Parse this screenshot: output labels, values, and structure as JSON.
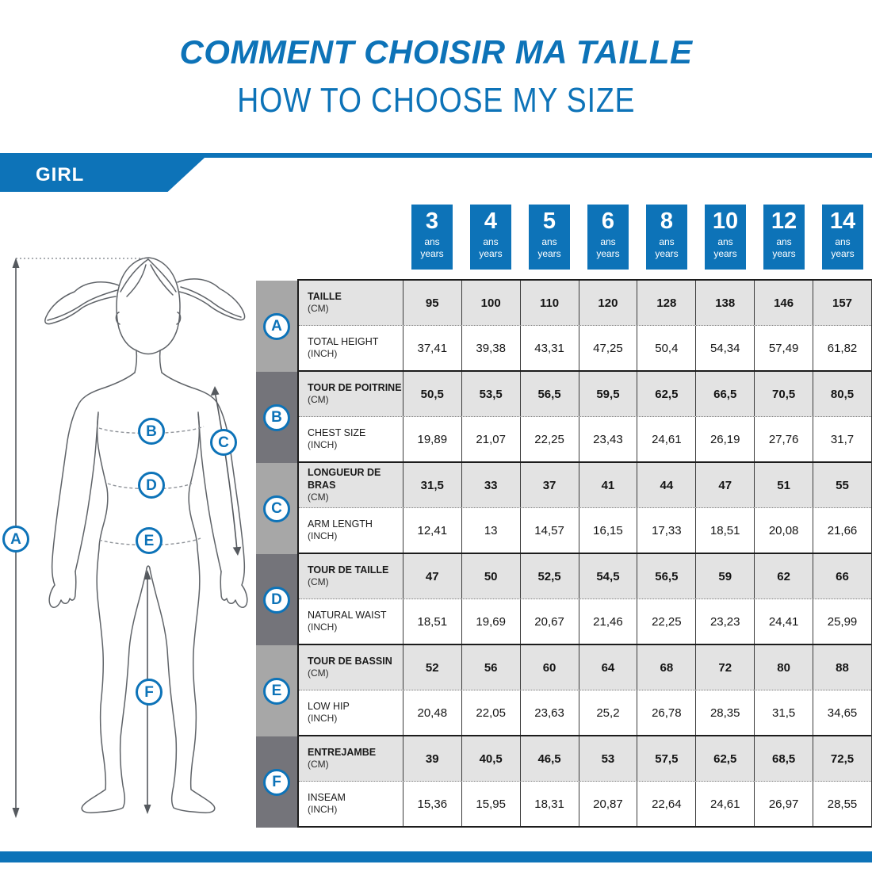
{
  "page": {
    "title_fr": "COMMENT CHOISIR MA TAILLE",
    "title_en": "HOW TO CHOOSE MY SIZE",
    "banner_label": "GIRL"
  },
  "colors": {
    "brand_blue": "#0d73b8",
    "band_gray_light": "#a7a7a7",
    "band_gray_dark": "#74747a",
    "cm_row_gray": "#e3e3e3"
  },
  "size_chart": {
    "age_columns": [
      {
        "age": "3",
        "unit_fr": "ans",
        "unit_en": "years"
      },
      {
        "age": "4",
        "unit_fr": "ans",
        "unit_en": "years"
      },
      {
        "age": "5",
        "unit_fr": "ans",
        "unit_en": "years"
      },
      {
        "age": "6",
        "unit_fr": "ans",
        "unit_en": "years"
      },
      {
        "age": "8",
        "unit_fr": "ans",
        "unit_en": "years"
      },
      {
        "age": "10",
        "unit_fr": "ans",
        "unit_en": "years"
      },
      {
        "age": "12",
        "unit_fr": "ans",
        "unit_en": "years"
      },
      {
        "age": "14",
        "unit_fr": "ans",
        "unit_en": "years"
      }
    ],
    "groups": [
      {
        "letter": "A",
        "metric_label": "TAILLE",
        "metric_unit": "(CM)",
        "imperial_label": "TOTAL HEIGHT",
        "imperial_unit": "(INCH)",
        "metric_values": [
          "95",
          "100",
          "110",
          "120",
          "128",
          "138",
          "146",
          "157"
        ],
        "imperial_values": [
          "37,41",
          "39,38",
          "43,31",
          "47,25",
          "50,4",
          "54,34",
          "57,49",
          "61,82"
        ]
      },
      {
        "letter": "B",
        "metric_label": "TOUR DE POITRINE",
        "metric_unit": "(CM)",
        "imperial_label": "CHEST SIZE",
        "imperial_unit": "(INCH)",
        "metric_values": [
          "50,5",
          "53,5",
          "56,5",
          "59,5",
          "62,5",
          "66,5",
          "70,5",
          "80,5"
        ],
        "imperial_values": [
          "19,89",
          "21,07",
          "22,25",
          "23,43",
          "24,61",
          "26,19",
          "27,76",
          "31,7"
        ]
      },
      {
        "letter": "C",
        "metric_label": "LONGUEUR DE BRAS",
        "metric_unit": "(CM)",
        "imperial_label": "ARM LENGTH",
        "imperial_unit": "(INCH)",
        "metric_values": [
          "31,5",
          "33",
          "37",
          "41",
          "44",
          "47",
          "51",
          "55"
        ],
        "imperial_values": [
          "12,41",
          "13",
          "14,57",
          "16,15",
          "17,33",
          "18,51",
          "20,08",
          "21,66"
        ]
      },
      {
        "letter": "D",
        "metric_label": "TOUR DE TAILLE",
        "metric_unit": "(CM)",
        "imperial_label": "NATURAL WAIST",
        "imperial_unit": "(INCH)",
        "metric_values": [
          "47",
          "50",
          "52,5",
          "54,5",
          "56,5",
          "59",
          "62",
          "66"
        ],
        "imperial_values": [
          "18,51",
          "19,69",
          "20,67",
          "21,46",
          "22,25",
          "23,23",
          "24,41",
          "25,99"
        ]
      },
      {
        "letter": "E",
        "metric_label": "TOUR DE BASSIN",
        "metric_unit": "(CM)",
        "imperial_label": "LOW HIP",
        "imperial_unit": "(INCH)",
        "metric_values": [
          "52",
          "56",
          "60",
          "64",
          "68",
          "72",
          "80",
          "88"
        ],
        "imperial_values": [
          "20,48",
          "22,05",
          "23,63",
          "25,2",
          "26,78",
          "28,35",
          "31,5",
          "34,65"
        ]
      },
      {
        "letter": "F",
        "metric_label": "ENTREJAMBE",
        "metric_unit": "(CM)",
        "imperial_label": "INSEAM",
        "imperial_unit": "(INCH)",
        "metric_values": [
          "39",
          "40,5",
          "46,5",
          "53",
          "57,5",
          "62,5",
          "68,5",
          "72,5"
        ],
        "imperial_values": [
          "15,36",
          "15,95",
          "18,31",
          "20,87",
          "22,64",
          "24,61",
          "26,97",
          "28,55"
        ]
      }
    ]
  },
  "figure": {
    "labels": [
      "A",
      "B",
      "C",
      "D",
      "E",
      "F"
    ]
  }
}
